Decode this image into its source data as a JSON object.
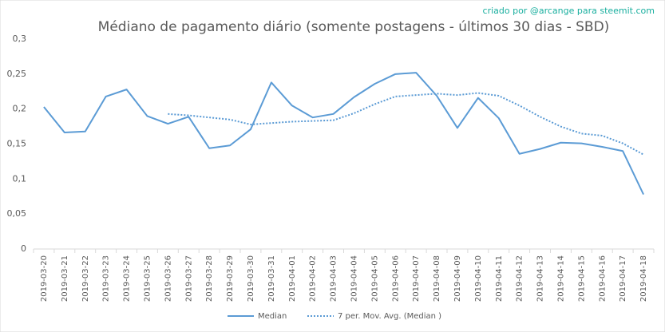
{
  "chart_data": {
    "type": "line",
    "title": "Médiano de pagamento diário (somente postagens - últimos 30 dias - SBD)",
    "annotation": "criado por @arcange para steemit.com",
    "categories": [
      "2019-03-20",
      "2019-03-21",
      "2019-03-22",
      "2019-03-23",
      "2019-03-24",
      "2019-03-25",
      "2019-03-26",
      "2019-03-27",
      "2019-03-28",
      "2019-03-29",
      "2019-03-30",
      "2019-03-31",
      "2019-04-01",
      "2019-04-02",
      "2019-04-03",
      "2019-04-04",
      "2019-04-05",
      "2019-04-06",
      "2019-04-07",
      "2019-04-08",
      "2019-04-09",
      "2019-04-10",
      "2019-04-11",
      "2019-04-12",
      "2019-04-13",
      "2019-04-14",
      "2019-04-15",
      "2019-04-16",
      "2019-04-17",
      "2019-04-18"
    ],
    "series": [
      {
        "name": "Median",
        "color": "#5b9bd5",
        "style": "solid",
        "values": [
          0.203,
          0.1665,
          0.168,
          0.218,
          0.228,
          0.19,
          0.179,
          0.189,
          0.144,
          0.148,
          0.171,
          0.238,
          0.205,
          0.188,
          0.193,
          0.217,
          0.236,
          0.25,
          0.252,
          0.219,
          0.173,
          0.216,
          0.187,
          0.136,
          0.143,
          0.152,
          0.151,
          0.146,
          0.14,
          0.078
        ]
      },
      {
        "name": "7 per. Mov. Avg. (Median )",
        "color": "#5b9bd5",
        "style": "dotted",
        "values": [
          null,
          null,
          null,
          null,
          null,
          null,
          0.193,
          0.191,
          0.188,
          0.185,
          0.178,
          0.18,
          0.182,
          0.183,
          0.184,
          0.194,
          0.207,
          0.218,
          0.22,
          0.222,
          0.22,
          0.223,
          0.219,
          0.205,
          0.189,
          0.175,
          0.165,
          0.162,
          0.151,
          0.135
        ]
      }
    ],
    "ylim": [
      0,
      0.3
    ],
    "yticks": [
      0,
      {
        "value": 0.05,
        "label": "0,05"
      },
      {
        "value": 0.1,
        "label": "0,1"
      },
      {
        "value": 0.15,
        "label": "0,15"
      },
      {
        "value": 0.2,
        "label": "0,2"
      },
      {
        "value": 0.25,
        "label": "0,25"
      },
      {
        "value": 0.3,
        "label": "0,3"
      }
    ],
    "grid": false,
    "legend": "bottom"
  }
}
